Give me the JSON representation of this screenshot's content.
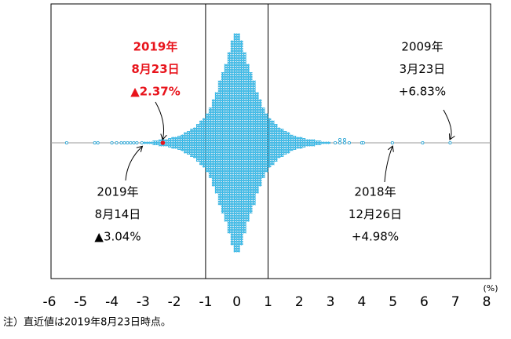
{
  "chart_data": {
    "type": "dotplot",
    "xlim": [
      -6,
      8
    ],
    "xticks": [
      -6,
      -5,
      -4,
      -3,
      -2,
      -1,
      0,
      1,
      2,
      3,
      4,
      5,
      6,
      7,
      8
    ],
    "x_unit": "(%)",
    "reference_lines": [
      -1,
      1
    ],
    "color": "#3ec3f0",
    "bins": [
      -3.0,
      -2.9,
      -2.8,
      -2.7,
      -2.6,
      -2.5,
      -2.4,
      -2.3,
      -2.2,
      -2.1,
      -2.0,
      -1.9,
      -1.8,
      -1.7,
      -1.6,
      -1.5,
      -1.4,
      -1.3,
      -1.2,
      -1.1,
      -1.0,
      -0.9,
      -0.8,
      -0.7,
      -0.6,
      -0.5,
      -0.4,
      -0.3,
      -0.2,
      -0.1,
      0.0,
      0.1,
      0.2,
      0.3,
      0.4,
      0.5,
      0.6,
      0.7,
      0.8,
      0.9,
      1.0,
      1.1,
      1.2,
      1.3,
      1.4,
      1.5,
      1.6,
      1.7,
      1.8,
      1.9,
      2.0,
      2.1,
      2.2,
      2.3,
      2.4,
      2.5,
      2.6,
      2.7,
      2.8,
      2.9,
      3.0
    ],
    "counts": [
      1,
      1,
      1,
      2,
      2,
      3,
      3,
      3,
      4,
      5,
      5,
      6,
      7,
      9,
      10,
      12,
      13,
      16,
      19,
      21,
      25,
      30,
      37,
      43,
      53,
      60,
      67,
      77,
      87,
      93,
      93,
      87,
      77,
      67,
      60,
      53,
      43,
      37,
      30,
      25,
      21,
      19,
      16,
      13,
      12,
      10,
      9,
      7,
      6,
      5,
      5,
      4,
      3,
      3,
      3,
      2,
      2,
      1,
      1,
      1
    ],
    "outliers": [
      -5.45,
      -4.55,
      -4.45,
      -4.0,
      -3.85,
      -3.7,
      -3.6,
      -3.5,
      -3.4,
      -3.3,
      -3.2,
      -3.04,
      3.15,
      3.3,
      3.3,
      3.45,
      3.45,
      3.6,
      4.0,
      4.05,
      4.98,
      5.95,
      6.83
    ],
    "annotations": [
      {
        "lines": [
          "2019年",
          "8月23日",
          "▲2.37%"
        ],
        "value": -2.37,
        "color": "#e8141c",
        "bold": true
      },
      {
        "lines": [
          "2009年",
          "3月23日",
          "+6.83%"
        ],
        "value": 6.83
      },
      {
        "lines": [
          "2019年",
          "8月14日",
          "▲3.04%"
        ],
        "value": -3.04
      },
      {
        "lines": [
          "2018年",
          "12月26日",
          "+4.98%"
        ],
        "value": 4.98
      }
    ],
    "footnote": "注）直近値は2019年8月23日時点。"
  }
}
